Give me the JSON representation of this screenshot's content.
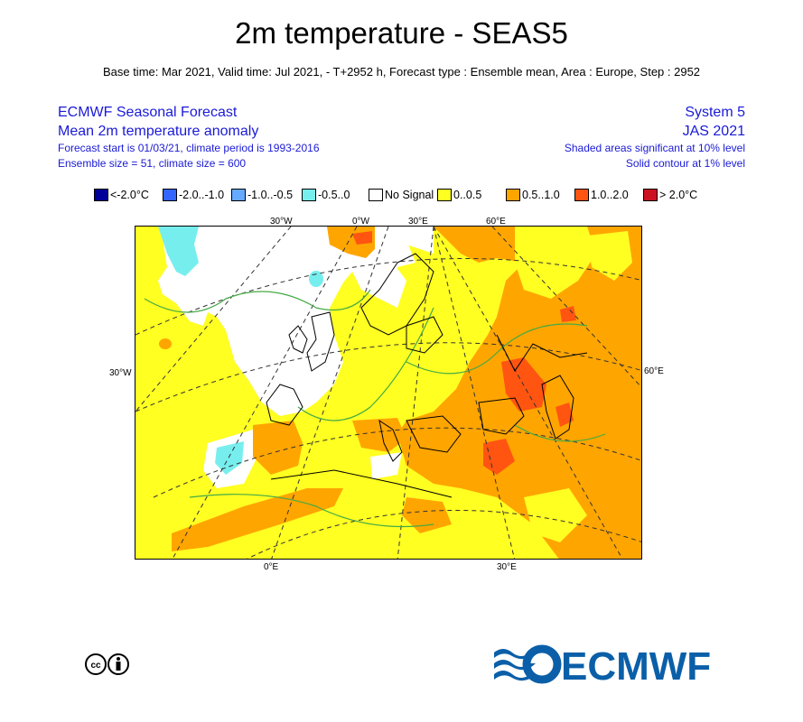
{
  "title": "2m temperature - SEAS5",
  "subtitle": "Base time: Mar 2021, Valid time: Jul 2021, - T+2952 h, Forecast type : Ensemble mean, Area : Europe, Step : 2952",
  "header_left": {
    "line1": "ECMWF Seasonal Forecast",
    "line2": "Mean 2m temperature anomaly",
    "line3": "Forecast start is 01/03/21, climate period is 1993-2016",
    "line4": "Ensemble size = 51, climate size = 600"
  },
  "header_right": {
    "line1": "System 5",
    "line2": "JAS 2021",
    "line3": "Shaded areas significant at 10% level",
    "line4": "Solid contour at 1% level"
  },
  "legend": [
    {
      "label": "<-2.0°C",
      "color": "#000099"
    },
    {
      "label": "-2.0..-1.0",
      "color": "#3366ff"
    },
    {
      "label": "-1.0..-0.5",
      "color": "#66aaff"
    },
    {
      "label": "-0.5..0",
      "color": "#77eeee"
    },
    {
      "label": "No Signal",
      "color": "#ffffff"
    },
    {
      "label": "0..0.5",
      "color": "#ffff22"
    },
    {
      "label": "0.5..1.0",
      "color": "#ffa500"
    },
    {
      "label": "1.0..2.0",
      "color": "#ff5511"
    },
    {
      "label": "> 2.0°C",
      "color": "#cc1122"
    }
  ],
  "axis_labels": {
    "top": [
      "30°W",
      "0°W",
      "30°E",
      "60°E"
    ],
    "left": "30°W",
    "right": "60°E",
    "bottom": [
      "0°E",
      "30°E"
    ]
  },
  "logo": {
    "text": "ECMWF",
    "color": "#0a5fa8"
  },
  "cc_icon": "creative-commons-by-icon"
}
